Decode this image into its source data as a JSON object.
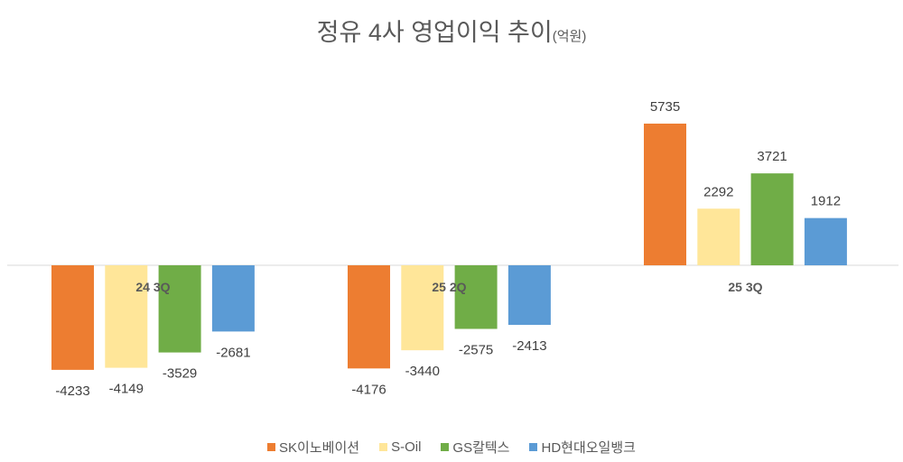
{
  "chart_data": {
    "type": "bar",
    "title": "정유 4사 영업이익 추이",
    "title_unit": "(억원)",
    "categories": [
      "24 3Q",
      "25 2Q",
      "25 3Q"
    ],
    "series": [
      {
        "name": "SK이노베이션",
        "color": "#ED7D31",
        "values": [
          -4233,
          -4176,
          5735
        ]
      },
      {
        "name": "S-Oil",
        "color": "#FFE699",
        "values": [
          -4149,
          -3440,
          2292
        ]
      },
      {
        "name": "GS칼텍스",
        "color": "#70AD47",
        "values": [
          -3529,
          -2575,
          3721
        ]
      },
      {
        "name": "HD현대오일뱅크",
        "color": "#5B9BD5",
        "values": [
          -2681,
          -2413,
          1912
        ]
      }
    ],
    "legend_position": "bottom",
    "grid": false
  }
}
